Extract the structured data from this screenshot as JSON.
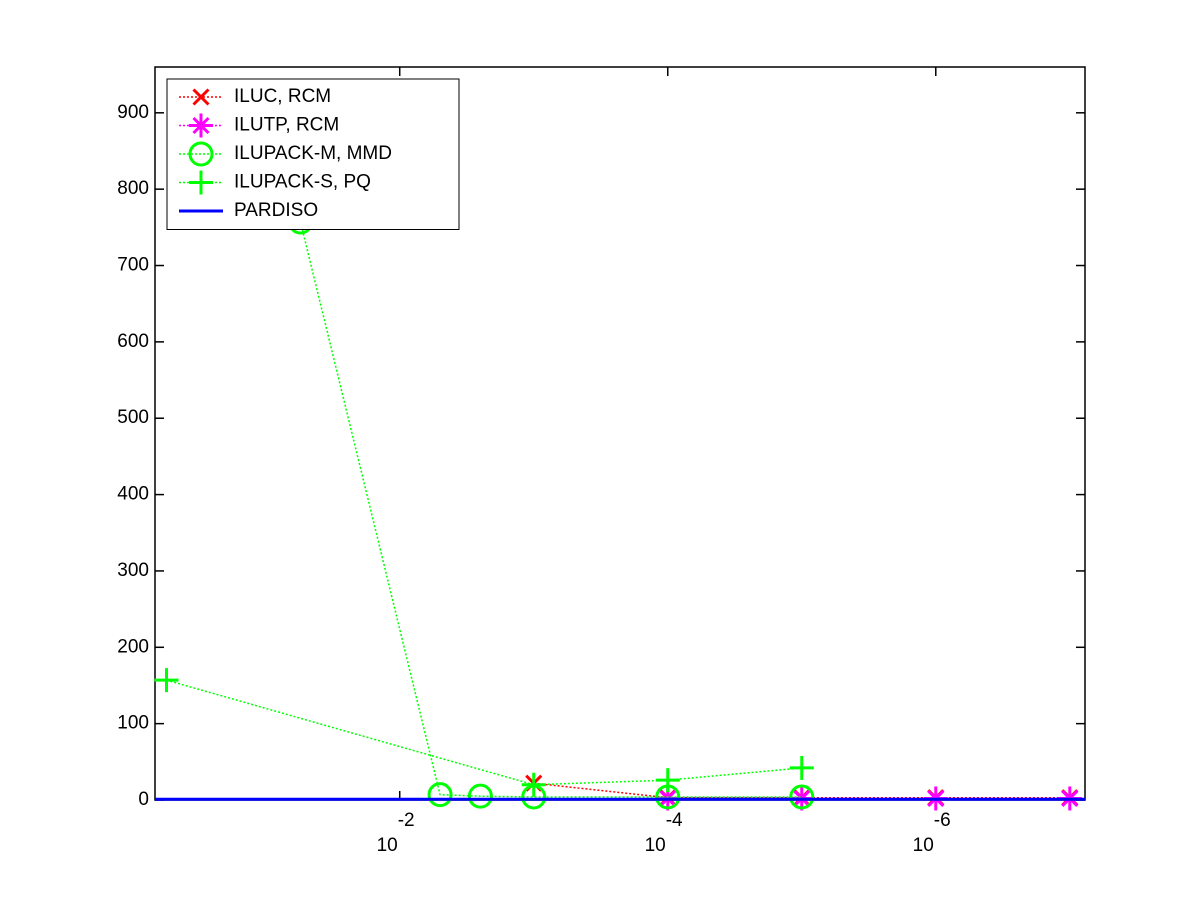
{
  "chart_data": {
    "type": "line",
    "xscale": "log",
    "xlim": [
      0.67,
      7.7e-08
    ],
    "ylim": [
      0,
      960
    ],
    "xticks": [
      {
        "value": 0.01,
        "label": "10",
        "exponent": "-2"
      },
      {
        "value": 0.0001,
        "label": "10",
        "exponent": "-4"
      },
      {
        "value": 1e-06,
        "label": "10",
        "exponent": "-6"
      }
    ],
    "yticks": [
      0,
      100,
      200,
      300,
      400,
      500,
      600,
      700,
      800,
      900
    ],
    "legend": "top-left",
    "series": [
      {
        "name": "ILUC, RCM",
        "color": "#ff0000",
        "marker": "x",
        "linestyle": "dotted",
        "x": [
          0.001,
          0.0001,
          1e-05,
          1e-06,
          1e-07
        ],
        "values": [
          22,
          3,
          3,
          3,
          3
        ]
      },
      {
        "name": "ILUTP, RCM",
        "color": "#ff00ff",
        "marker": "*",
        "linestyle": "dotted",
        "x": [
          0.0001,
          1e-05,
          1e-06,
          1e-07
        ],
        "values": [
          2,
          2,
          2,
          2
        ]
      },
      {
        "name": "ILUPACK-M, MMD",
        "color": "#00ff00",
        "marker": "o",
        "linestyle": "dotted",
        "x": [
          0.055,
          0.005,
          0.0025,
          0.001,
          0.0001,
          1e-05
        ],
        "values": [
          757,
          7,
          5,
          4,
          4,
          4
        ]
      },
      {
        "name": "ILUPACK-S, PQ",
        "color": "#00ff00",
        "marker": "+",
        "linestyle": "dotted",
        "x": [
          0.55,
          0.001,
          0.0001,
          1e-05
        ],
        "values": [
          157,
          20,
          26,
          42
        ]
      },
      {
        "name": "PARDISO",
        "color": "#0000ff",
        "marker": "none",
        "linestyle": "solid",
        "x": [
          0.67,
          7.7e-08
        ],
        "values": [
          1,
          1
        ]
      }
    ]
  }
}
